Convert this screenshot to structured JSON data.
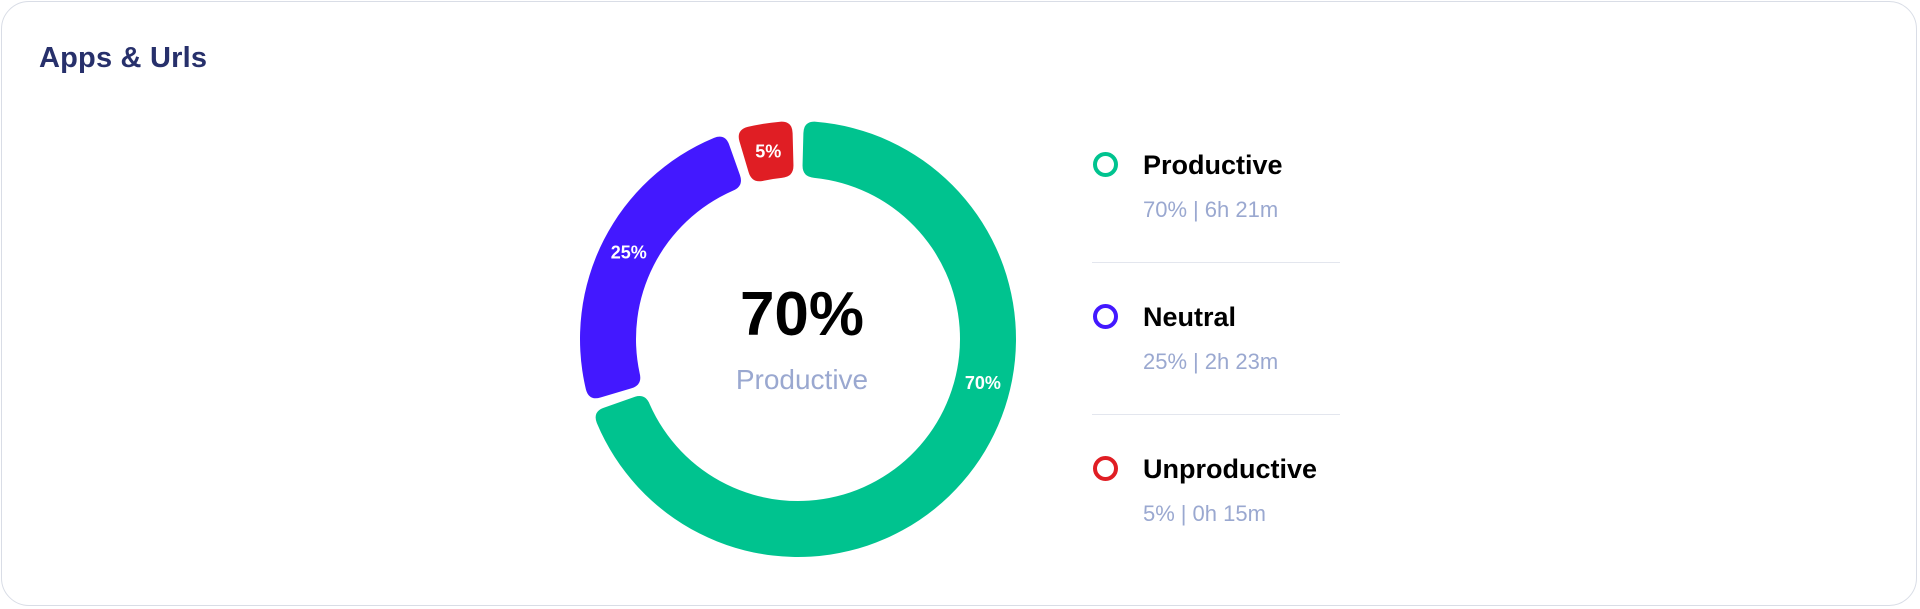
{
  "card": {
    "title": "Apps & Urls"
  },
  "center": {
    "value": "70%",
    "label": "Productive"
  },
  "chart_data": {
    "type": "pie",
    "variant": "donut",
    "categories": [
      "Productive",
      "Neutral",
      "Unproductive"
    ],
    "values": [
      70,
      25,
      5
    ],
    "value_unit": "%",
    "data_labels": [
      "70%",
      "25%",
      "5%"
    ],
    "colors": [
      "#00c38f",
      "#4318ff",
      "#e01e24"
    ],
    "legend_placement": "right",
    "title": ""
  },
  "legend": [
    {
      "name": "Productive",
      "percent": "70%",
      "time": "6h 21m",
      "color": "#00c38f"
    },
    {
      "name": "Neutral",
      "percent": "25%",
      "time": "2h 23m",
      "color": "#4318ff"
    },
    {
      "name": "Unproductive",
      "percent": "5%",
      "time": "0h 15m",
      "color": "#e01e24"
    }
  ],
  "separator": "|"
}
